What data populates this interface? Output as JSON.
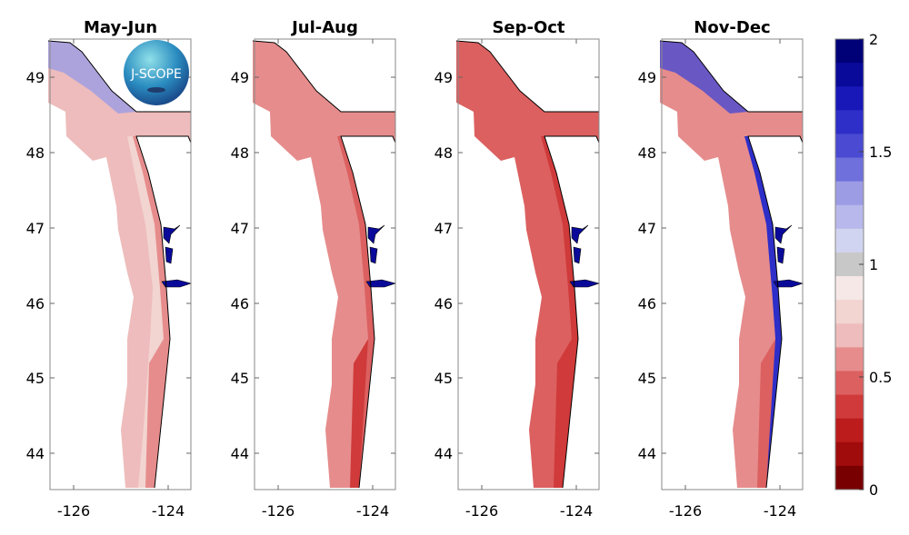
{
  "panels": [
    {
      "title": "May-Jun",
      "offshore": "#eebcbc",
      "mid": "#f2d4d0",
      "coast": "#e68c8c",
      "north": "#9c9ce4",
      "sound": "#0a0a9a",
      "nearshore_south": "#e68c8c"
    },
    {
      "title": "Jul-Aug",
      "offshore": "#e68c8c",
      "mid": "#e68c8c",
      "coast": "#dc6060",
      "north": "#e68c8c",
      "sound": "#0a0a9a",
      "nearshore_south": "#d03a3a"
    },
    {
      "title": "Sep-Oct",
      "offshore": "#dc6060",
      "mid": "#dc6060",
      "coast": "#d03a3a",
      "north": "#dc6060",
      "sound": "#0a0a9a",
      "nearshore_south": "#d03a3a"
    },
    {
      "title": "Nov-Dec",
      "offshore": "#e68c8c",
      "mid": "#e68c8c",
      "coast": "#2e2ec8",
      "north": "#4a4ad2",
      "sound": "#0a0a9a",
      "nearshore_south": "#dc6060"
    }
  ],
  "lat_ticks": [
    "49",
    "48",
    "47",
    "46",
    "45",
    "44"
  ],
  "lon_ticks": [
    "-126",
    "-124"
  ],
  "logo": {
    "text": "J-SCOPE"
  },
  "colorbar": {
    "range": [
      0,
      2
    ],
    "ticks": [
      "2",
      "1.5",
      "1",
      "0.5",
      "0"
    ],
    "colors_top_to_bottom": [
      "#000077",
      "#0a0a9a",
      "#1818b8",
      "#2e2ec8",
      "#4a4ad2",
      "#7070dc",
      "#9c9ce4",
      "#b8b8ec",
      "#d0d4f0",
      "#c8c8c8",
      "#f6e8e6",
      "#f2d4d0",
      "#eebcbc",
      "#e68c8c",
      "#dc6060",
      "#d03a3a",
      "#bc1c1c",
      "#a00c0c",
      "#780000"
    ]
  }
}
